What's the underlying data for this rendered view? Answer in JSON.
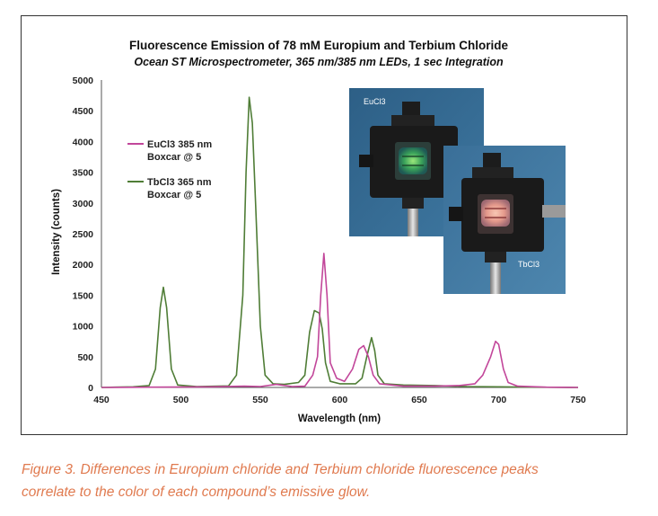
{
  "chart_data": {
    "type": "line",
    "title": "Fluorescence Emission of 78 mM Europium and Terbium Chloride",
    "subtitle": "Ocean ST Microspectrometer, 365 nm/385 nm LEDs, 1 sec Integration",
    "xlabel": "Wavelength (nm)",
    "ylabel": "Intensity (counts)",
    "xlim": [
      450,
      750
    ],
    "ylim": [
      0,
      5000
    ],
    "x_ticks": [
      450,
      500,
      550,
      600,
      650,
      700,
      750
    ],
    "y_ticks": [
      0,
      500,
      1000,
      1500,
      2000,
      2500,
      3000,
      3500,
      4000,
      4500,
      5000
    ],
    "grid": false,
    "legend_position": "upper-left",
    "series": [
      {
        "name_line1": "EuCl3 385 nm",
        "name_line2": "Boxcar @ 5",
        "color": "#c2469a",
        "points": [
          [
            450,
            0
          ],
          [
            480,
            5
          ],
          [
            520,
            10
          ],
          [
            540,
            20
          ],
          [
            550,
            15
          ],
          [
            560,
            50
          ],
          [
            570,
            15
          ],
          [
            578,
            20
          ],
          [
            583,
            200
          ],
          [
            586,
            500
          ],
          [
            588,
            1500
          ],
          [
            590,
            2180
          ],
          [
            592,
            1500
          ],
          [
            594,
            400
          ],
          [
            598,
            150
          ],
          [
            603,
            100
          ],
          [
            608,
            300
          ],
          [
            612,
            620
          ],
          [
            615,
            680
          ],
          [
            618,
            500
          ],
          [
            621,
            200
          ],
          [
            625,
            60
          ],
          [
            640,
            20
          ],
          [
            660,
            20
          ],
          [
            675,
            30
          ],
          [
            685,
            60
          ],
          [
            690,
            200
          ],
          [
            695,
            500
          ],
          [
            698,
            750
          ],
          [
            700,
            700
          ],
          [
            703,
            300
          ],
          [
            706,
            80
          ],
          [
            712,
            20
          ],
          [
            730,
            5
          ],
          [
            750,
            0
          ]
        ]
      },
      {
        "name_line1": "TbCl3 365 nm",
        "name_line2": "Boxcar @ 5",
        "color": "#4f7d36",
        "points": [
          [
            450,
            0
          ],
          [
            470,
            10
          ],
          [
            480,
            30
          ],
          [
            484,
            300
          ],
          [
            487,
            1300
          ],
          [
            489,
            1630
          ],
          [
            491,
            1300
          ],
          [
            494,
            300
          ],
          [
            498,
            40
          ],
          [
            510,
            15
          ],
          [
            530,
            25
          ],
          [
            535,
            200
          ],
          [
            539,
            1500
          ],
          [
            541,
            3500
          ],
          [
            543,
            4720
          ],
          [
            545,
            4300
          ],
          [
            547,
            3000
          ],
          [
            550,
            1000
          ],
          [
            553,
            200
          ],
          [
            558,
            60
          ],
          [
            565,
            50
          ],
          [
            574,
            80
          ],
          [
            578,
            200
          ],
          [
            581,
            900
          ],
          [
            584,
            1250
          ],
          [
            587,
            1210
          ],
          [
            589,
            950
          ],
          [
            591,
            400
          ],
          [
            594,
            100
          ],
          [
            600,
            60
          ],
          [
            610,
            60
          ],
          [
            614,
            150
          ],
          [
            617,
            500
          ],
          [
            620,
            810
          ],
          [
            622,
            600
          ],
          [
            624,
            200
          ],
          [
            628,
            60
          ],
          [
            640,
            40
          ],
          [
            660,
            30
          ],
          [
            680,
            15
          ],
          [
            700,
            10
          ],
          [
            720,
            5
          ],
          [
            750,
            0
          ]
        ]
      }
    ]
  },
  "photos": {
    "eu_label": "EuCl3",
    "tb_label": "TbCl3"
  },
  "caption": {
    "line1": "Figure 3. Differences in Europium chloride and Terbium chloride fluorescence peaks",
    "line2": "correlate to the color of each compound’s emissive glow."
  }
}
